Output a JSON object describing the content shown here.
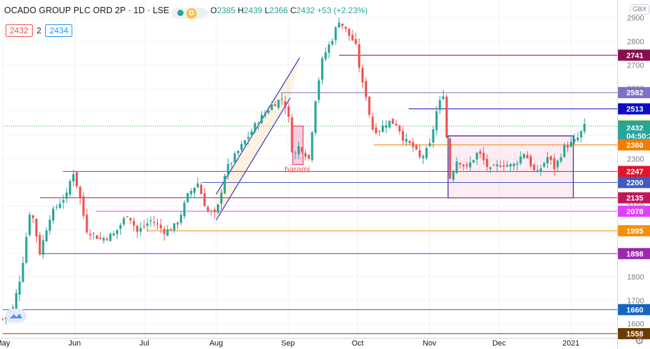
{
  "header": {
    "title": "OCADO GROUP PLC ORD 2P · 1D · LSE",
    "badge": "D",
    "o_label": "O",
    "o": "2385",
    "h_label": "H",
    "h": "2439",
    "l_label": "L",
    "l": "2366",
    "c_label": "C",
    "c": "2432",
    "change": "+53 (+2.23%)",
    "bid": "2432",
    "spread": "2",
    "ask": "2434",
    "currency": "GBX",
    "countdown": "04:50:2"
  },
  "colors": {
    "up": "#26a69a",
    "down": "#ef5350",
    "grid": "#f0f3fa",
    "text": "#131722",
    "axis_text": "#787b86"
  },
  "chart_data": {
    "type": "candlestick",
    "symbol": "OCADO GROUP PLC ORD 2P",
    "interval": "1D",
    "exchange": "LSE",
    "ylim": [
      1540,
      2940
    ],
    "y_ticks": [
      1600,
      1700,
      1800,
      1900,
      2000,
      2100,
      2200,
      2300,
      2400,
      2500,
      2600,
      2700,
      2800,
      2900
    ],
    "x_ticks": [
      {
        "label": "May",
        "day": 0
      },
      {
        "label": "Jun",
        "day": 31
      },
      {
        "label": "Jul",
        "day": 61
      },
      {
        "label": "Aug",
        "day": 92
      },
      {
        "label": "Sep",
        "day": 123
      },
      {
        "label": "Oct",
        "day": 153
      },
      {
        "label": "Nov",
        "day": 184
      },
      {
        "label": "Dec",
        "day": 214
      },
      {
        "label": "2021",
        "day": 245
      }
    ],
    "x_range_days": [
      0,
      265
    ],
    "anchors": [
      [
        0,
        1620
      ],
      [
        4,
        1650
      ],
      [
        8,
        1820
      ],
      [
        12,
        2100
      ],
      [
        16,
        1900
      ],
      [
        20,
        2050
      ],
      [
        24,
        2110
      ],
      [
        28,
        2150
      ],
      [
        30,
        2260
      ],
      [
        33,
        2150
      ],
      [
        36,
        2000
      ],
      [
        42,
        1960
      ],
      [
        48,
        1980
      ],
      [
        54,
        2070
      ],
      [
        58,
        1990
      ],
      [
        64,
        2040
      ],
      [
        70,
        1990
      ],
      [
        75,
        2020
      ],
      [
        80,
        2150
      ],
      [
        84,
        2200
      ],
      [
        88,
        2080
      ],
      [
        92,
        2060
      ],
      [
        96,
        2250
      ],
      [
        100,
        2310
      ],
      [
        104,
        2370
      ],
      [
        110,
        2460
      ],
      [
        116,
        2530
      ],
      [
        121,
        2560
      ],
      [
        124,
        2440
      ],
      [
        125,
        2300
      ],
      [
        128,
        2360
      ],
      [
        132,
        2300
      ],
      [
        135,
        2570
      ],
      [
        138,
        2730
      ],
      [
        142,
        2810
      ],
      [
        145,
        2890
      ],
      [
        149,
        2830
      ],
      [
        152,
        2790
      ],
      [
        155,
        2620
      ],
      [
        157,
        2560
      ],
      [
        159,
        2430
      ],
      [
        162,
        2420
      ],
      [
        166,
        2460
      ],
      [
        170,
        2450
      ],
      [
        173,
        2380
      ],
      [
        177,
        2350
      ],
      [
        180,
        2300
      ],
      [
        184,
        2350
      ],
      [
        187,
        2500
      ],
      [
        190,
        2580
      ],
      [
        191,
        2520
      ],
      [
        192,
        2200
      ],
      [
        196,
        2300
      ],
      [
        200,
        2260
      ],
      [
        205,
        2330
      ],
      [
        210,
        2250
      ],
      [
        215,
        2280
      ],
      [
        220,
        2270
      ],
      [
        225,
        2330
      ],
      [
        230,
        2230
      ],
      [
        235,
        2310
      ],
      [
        238,
        2260
      ],
      [
        242,
        2350
      ],
      [
        246,
        2370
      ],
      [
        248,
        2390
      ],
      [
        251,
        2440
      ]
    ],
    "price_labels": [
      {
        "value": 2741,
        "text": "2741",
        "bg": "#880e4f"
      },
      {
        "value": 2582,
        "text": "2582",
        "bg": "#7e6fc7"
      },
      {
        "value": 2513,
        "text": "2513",
        "bg": "#0d0dc9"
      },
      {
        "value": 2440,
        "text": "2440",
        "bg": "#43a047"
      },
      {
        "value": 2432,
        "text": "2432",
        "bg": "#26a69a"
      },
      {
        "value": 2398,
        "text": "04:50:2",
        "bg": "#26a69a"
      },
      {
        "value": 2360,
        "text": "2360",
        "bg": "#f57c00"
      },
      {
        "value": 2247,
        "text": "2247",
        "bg": "#e0162b"
      },
      {
        "value": 2200,
        "text": "2200",
        "bg": "#3f5ac0"
      },
      {
        "value": 2135,
        "text": "2135",
        "bg": "#c2185b"
      },
      {
        "value": 2078,
        "text": "2078",
        "bg": "#e040fb"
      },
      {
        "value": 1995,
        "text": "1995",
        "bg": "#fb8c00"
      },
      {
        "value": 1898,
        "text": "1898",
        "bg": "#9c27b0"
      },
      {
        "value": 1660,
        "text": "1660",
        "bg": "#1565c0"
      },
      {
        "value": 1558,
        "text": "1558",
        "bg": "#6d3a00"
      }
    ],
    "levels": [
      {
        "value": 2741,
        "from_day": 145,
        "color": "#880e4f"
      },
      {
        "value": 2582,
        "from_day": 120,
        "color": "#7e6fc7"
      },
      {
        "value": 2513,
        "from_day": 175,
        "color": "#0d0dc9"
      },
      {
        "value": 2440,
        "from_day": 0,
        "color": "#43a047",
        "dotted": true
      },
      {
        "value": 2360,
        "from_day": 160,
        "color": "#f57c00"
      },
      {
        "value": 2247,
        "from_day": 26,
        "color": "#e0162b"
      },
      {
        "value": 2200,
        "from_day": 86,
        "color": "#3f5ac0"
      },
      {
        "value": 2135,
        "from_day": 16,
        "color": "#c2185b"
      },
      {
        "value": 2078,
        "from_day": 40,
        "color": "#e040fb"
      },
      {
        "value": 1995,
        "from_day": 62,
        "color": "#fb8c00"
      },
      {
        "value": 1898,
        "from_day": 16,
        "color": "#9c27b0"
      },
      {
        "value": 1660,
        "from_day": 0,
        "color": "#1565c0"
      },
      {
        "value": 1558,
        "from_day": 0,
        "color": "#6d3a00"
      }
    ],
    "channel": {
      "color": "#3030c8",
      "lower": [
        [
          92,
          2040
        ],
        [
          124,
          2560
        ]
      ],
      "upper": [
        [
          92,
          2150
        ],
        [
          128,
          2730
        ]
      ]
    },
    "annotations": [
      {
        "text": "harami",
        "day": 127,
        "value": 2245,
        "color": "#ef5350"
      }
    ],
    "harami_box": {
      "day_from": 125,
      "day_to": 129.5,
      "low": 2277,
      "high": 2440,
      "color": "#e91e63"
    },
    "range_box": {
      "day_from": 192,
      "day_to": 246,
      "low": 2135,
      "high": 2398,
      "color": "#2020a0"
    }
  }
}
